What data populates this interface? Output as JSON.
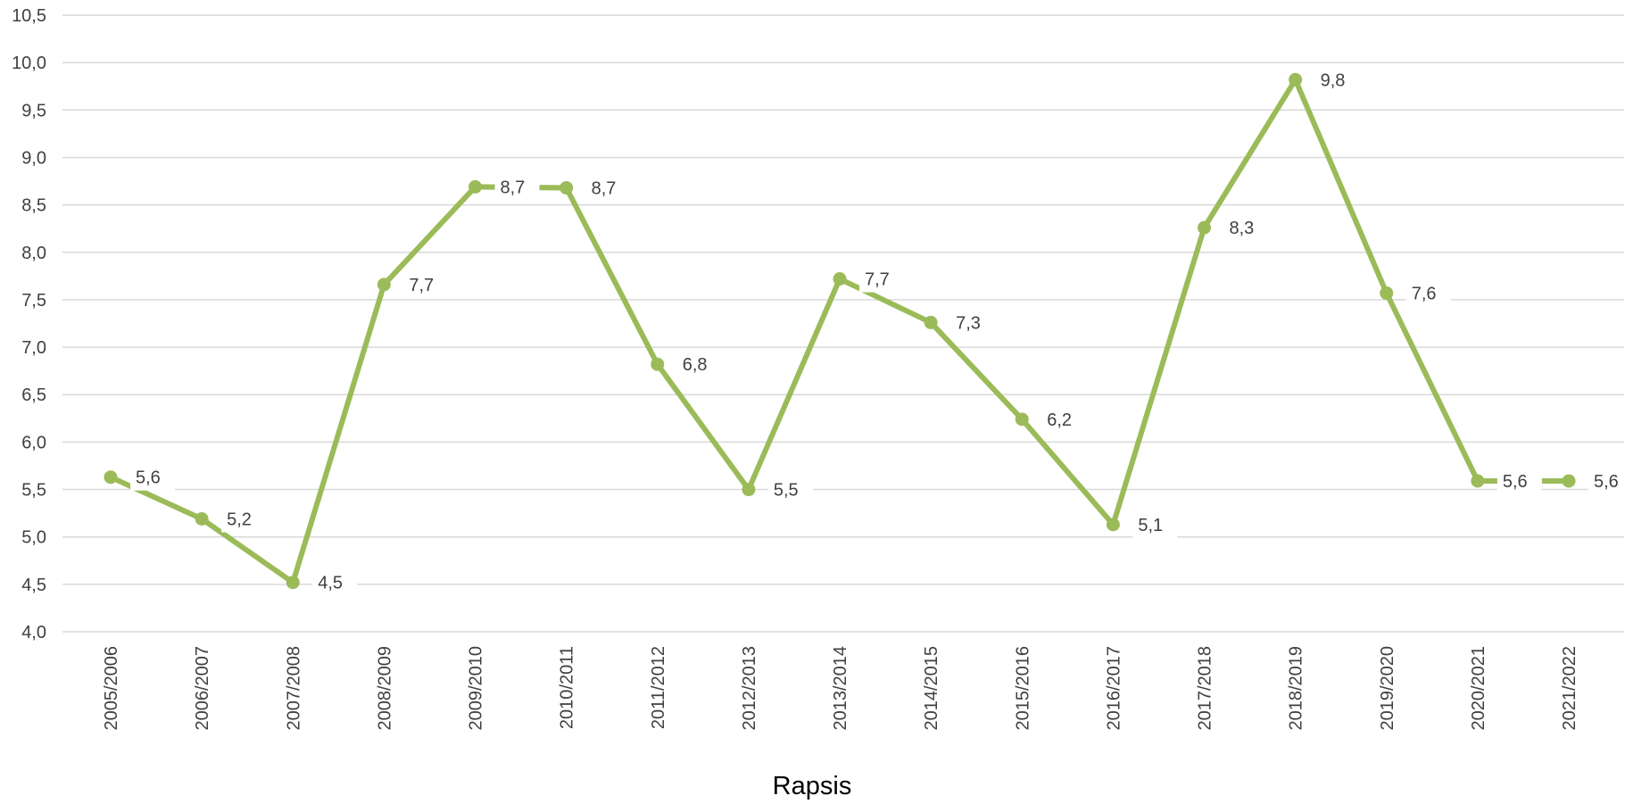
{
  "chart_data": {
    "type": "line",
    "categories": [
      "2005/2006",
      "2006/2007",
      "2007/2008",
      "2008/2009",
      "2009/2010",
      "2010/2011",
      "2011/2012",
      "2012/2013",
      "2013/2014",
      "2014/2015",
      "2015/2016",
      "2016/2017",
      "2017/2018",
      "2018/2019",
      "2019/2020",
      "2020/2021",
      "2021/2022"
    ],
    "series": [
      {
        "name": "Rapsis",
        "values": [
          5.63,
          5.19,
          4.52,
          7.66,
          8.69,
          8.68,
          6.82,
          5.5,
          7.72,
          7.26,
          6.24,
          5.13,
          8.26,
          9.82,
          7.57,
          5.59,
          5.59
        ],
        "labels": [
          "5,6",
          "5,2",
          "4,5",
          "7,7",
          "8,7",
          "8,7",
          "6,8",
          "5,5",
          "7,7",
          "7,3",
          "6,2",
          "5,1",
          "8,3",
          "9,8",
          "7,6",
          "5,6",
          "5,6"
        ]
      }
    ],
    "y_ticks": [
      "4,0",
      "4,5",
      "5,0",
      "5,5",
      "6,0",
      "6,5",
      "7,0",
      "7,5",
      "8,0",
      "8,5",
      "9,0",
      "9,5",
      "10,0",
      "10,5"
    ],
    "ylim": [
      4.0,
      10.5
    ],
    "grid": true,
    "legend_position": "bottom",
    "title": "",
    "xlabel": "",
    "ylabel": "",
    "colors": {
      "series": "#9bbb59",
      "grid": "#d9d9d9",
      "text": "#404040",
      "legend_text": "#000000"
    }
  }
}
